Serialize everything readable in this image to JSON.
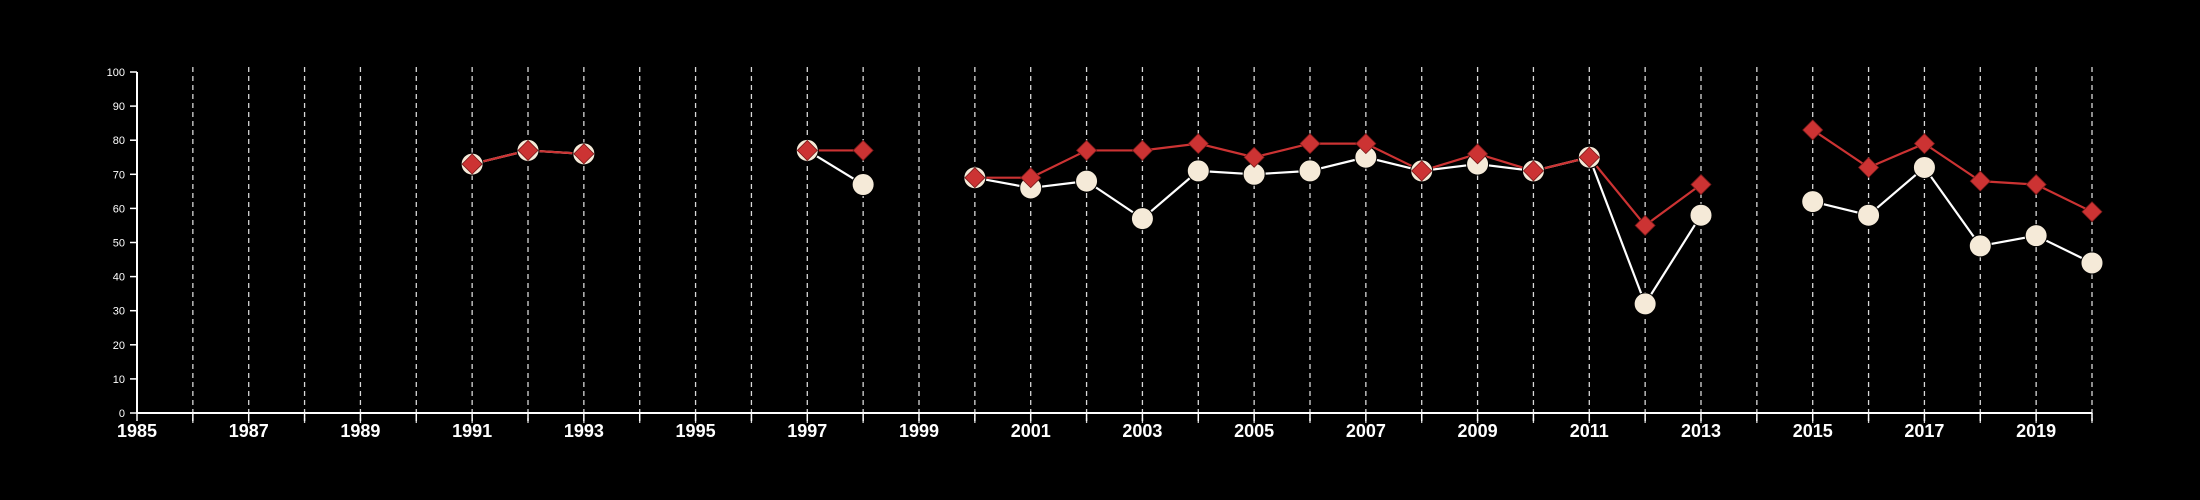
{
  "chart_data": {
    "type": "line",
    "title": "",
    "xlabel": "",
    "ylabel": "",
    "xlim": [
      1985,
      2020
    ],
    "ylim": [
      0,
      100
    ],
    "y_ticks": [
      0,
      10,
      20,
      30,
      40,
      50,
      60,
      70,
      80,
      90,
      100
    ],
    "x_tick_labels": [
      "1985",
      "1987",
      "1989",
      "1991",
      "1993",
      "1995",
      "1997",
      "1999",
      "2001",
      "2003",
      "2005",
      "2007",
      "2009",
      "2011",
      "2013",
      "2015",
      "2017",
      "2019"
    ],
    "vertical_grid": "dashed at every year",
    "series": [
      {
        "marker": "circle",
        "color": "#f5ead8",
        "line_color": "#ffffff",
        "points": [
          [
            1991,
            73
          ],
          [
            1992,
            77
          ],
          [
            1993,
            76
          ],
          [
            1997,
            77
          ],
          [
            1998,
            67
          ],
          [
            2000,
            69
          ],
          [
            2001,
            66
          ],
          [
            2002,
            68
          ],
          [
            2003,
            57
          ],
          [
            2004,
            71
          ],
          [
            2005,
            70
          ],
          [
            2006,
            71
          ],
          [
            2007,
            75
          ],
          [
            2008,
            71
          ],
          [
            2009,
            73
          ],
          [
            2010,
            71
          ],
          [
            2011,
            75
          ],
          [
            2012,
            32
          ],
          [
            2013,
            58
          ],
          [
            2015,
            62
          ],
          [
            2016,
            58
          ],
          [
            2017,
            72
          ],
          [
            2018,
            49
          ],
          [
            2019,
            52
          ],
          [
            2020,
            44
          ]
        ]
      },
      {
        "marker": "diamond",
        "color": "#cc3333",
        "line_color": "#cc3333",
        "points": [
          [
            1991,
            73
          ],
          [
            1992,
            77
          ],
          [
            1993,
            76
          ],
          [
            1997,
            77
          ],
          [
            1998,
            77
          ],
          [
            2000,
            69
          ],
          [
            2001,
            69
          ],
          [
            2002,
            77
          ],
          [
            2003,
            77
          ],
          [
            2004,
            79
          ],
          [
            2005,
            75
          ],
          [
            2006,
            79
          ],
          [
            2007,
            79
          ],
          [
            2008,
            71
          ],
          [
            2009,
            76
          ],
          [
            2010,
            71
          ],
          [
            2011,
            75
          ],
          [
            2012,
            55
          ],
          [
            2013,
            67
          ],
          [
            2015,
            83
          ],
          [
            2016,
            72
          ],
          [
            2017,
            79
          ],
          [
            2018,
            68
          ],
          [
            2019,
            67
          ],
          [
            2020,
            59
          ]
        ]
      }
    ]
  }
}
